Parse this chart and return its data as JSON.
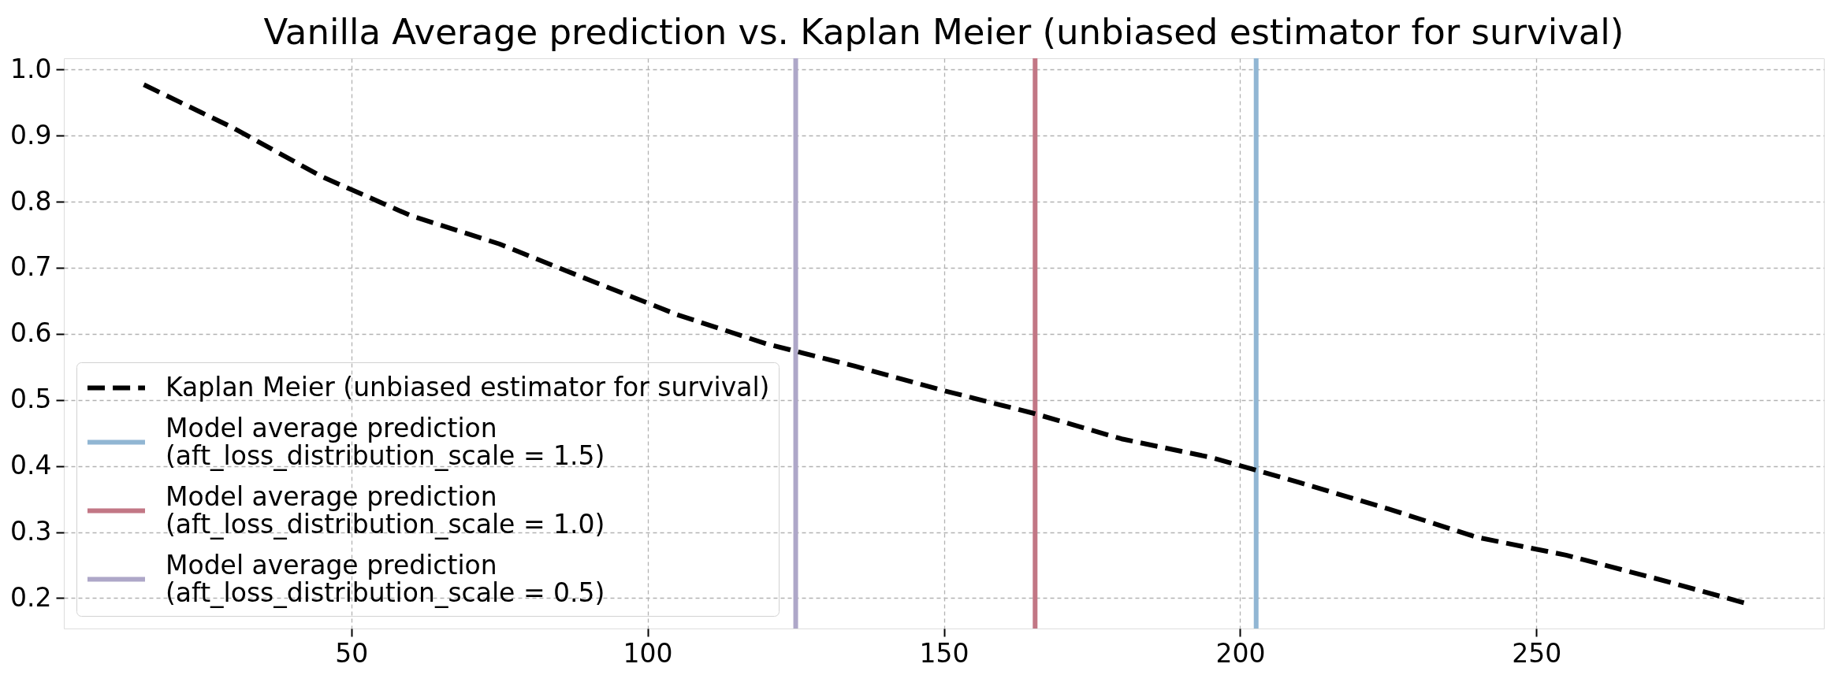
{
  "chart_data": {
    "type": "line",
    "title": "Vanilla Average prediction vs. Kaplan Meier (unbiased estimator for survival)",
    "series": [
      {
        "name": "Kaplan Meier (unbiased estimator for survival)",
        "color": "#000000",
        "line_style": "dashed",
        "x": [
          15,
          30,
          45,
          60,
          75,
          90,
          105,
          120,
          135,
          150,
          165,
          180,
          195,
          210,
          225,
          240,
          255,
          270,
          285
        ],
        "values": [
          0.977,
          0.912,
          0.838,
          0.779,
          0.736,
          0.682,
          0.629,
          0.585,
          0.551,
          0.514,
          0.48,
          0.441,
          0.413,
          0.375,
          0.335,
          0.292,
          0.265,
          0.23,
          0.193
        ]
      },
      {
        "name": "Model average prediction\n(aft_loss_distribution_scale = 1.5)",
        "color": "#91b6d3",
        "x": [
          202.7,
          202.7
        ],
        "values": [
          0.154,
          1.017
        ]
      },
      {
        "name": "Model average prediction\n(aft_loss_distribution_scale = 1.0)",
        "color": "#c27785",
        "x": [
          165.4,
          165.4
        ],
        "values": [
          0.154,
          1.017
        ]
      },
      {
        "name": "Model average prediction\n(aft_loss_distribution_scale = 0.5)",
        "color": "#aea7c8",
        "x": [
          125.0,
          125.0
        ],
        "values": [
          0.154,
          1.017
        ]
      }
    ],
    "xlim": [
      1.5,
      298.5
    ],
    "xticks": [
      50,
      100,
      150,
      200,
      250
    ],
    "ylim": [
      0.154,
      1.017
    ],
    "yticks": [
      0.2,
      0.3,
      0.4,
      0.5,
      0.6,
      0.7,
      0.8,
      0.9,
      {
        "value": 1.0,
        "label": "1.0"
      }
    ],
    "grid": true,
    "legend": "bottom left"
  }
}
